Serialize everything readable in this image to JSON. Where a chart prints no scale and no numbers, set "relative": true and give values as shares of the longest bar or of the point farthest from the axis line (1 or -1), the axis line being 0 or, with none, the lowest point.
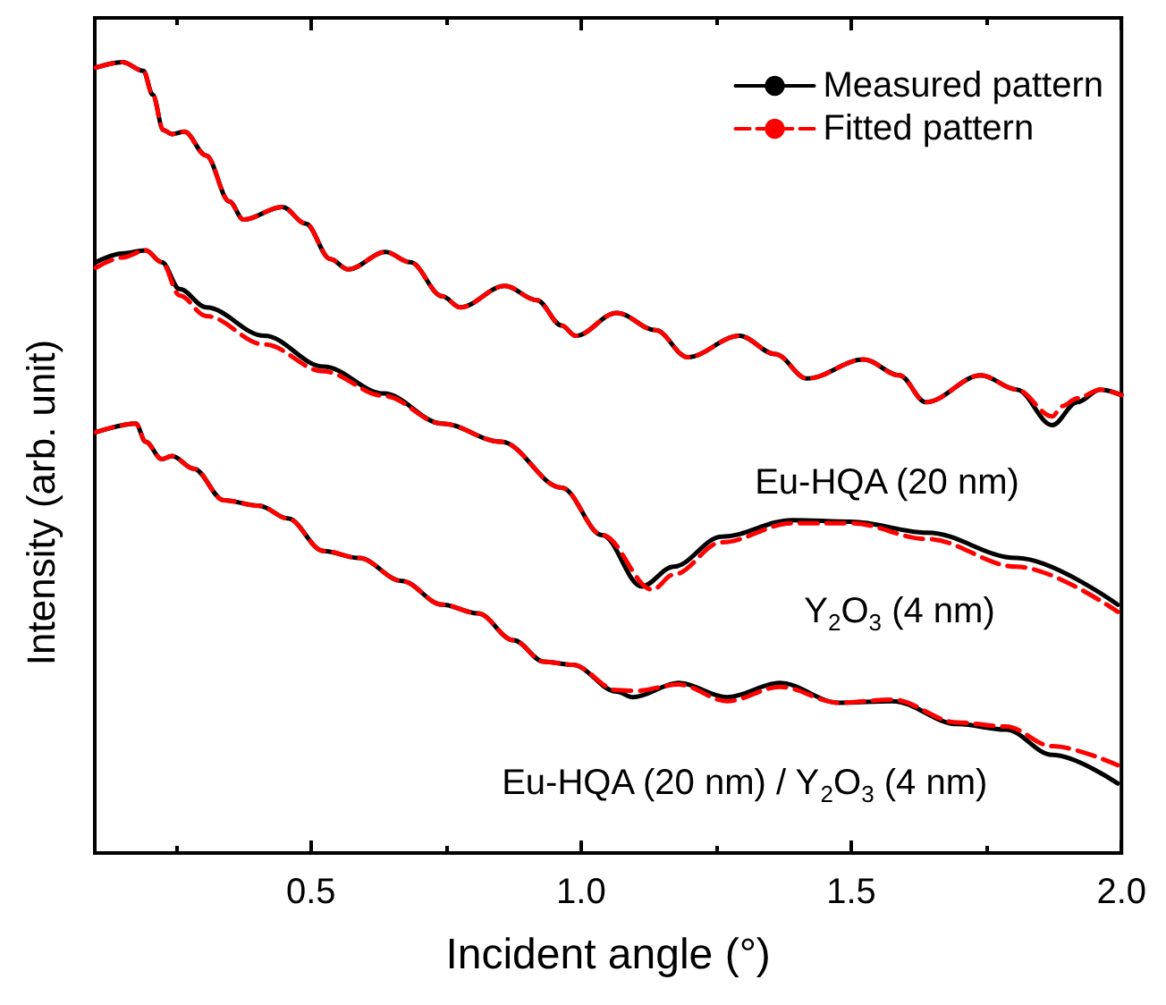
{
  "chart_data": {
    "type": "line",
    "relative": true,
    "xlabel": "Incident angle (°)",
    "ylabel": "Intensity (arb. unit)",
    "xlim": [
      0.1,
      2.0
    ],
    "xticks": [
      {
        "value": 0.25,
        "label": null
      },
      0.5,
      {
        "value": 0.75,
        "label": null
      },
      {
        "value": 1.0,
        "label": "1.0"
      },
      {
        "value": 1.25,
        "label": null
      },
      1.5,
      {
        "value": 1.75,
        "label": null
      },
      {
        "value": 2.0,
        "label": "2.0"
      }
    ],
    "legend": "top right",
    "marker": "none",
    "grid": false,
    "series": [
      {
        "name": "Measured pattern",
        "color": "#000000",
        "line_style": "solid",
        "x": [
          0.102,
          0.151,
          0.19,
          0.207,
          0.227,
          0.243,
          0.266,
          0.306,
          0.349,
          0.375,
          0.447,
          0.49,
          0.536,
          0.569,
          0.638,
          0.684,
          0.743,
          0.776,
          0.859,
          0.918,
          0.964,
          0.99,
          1.066,
          1.138,
          1.197,
          1.293,
          1.359,
          1.418,
          1.523,
          1.589,
          1.638,
          1.74,
          1.806,
          1.872,
          1.918,
          1.961,
          2.0
        ],
        "values": [
          0.993,
          1.0,
          0.989,
          0.959,
          0.914,
          0.909,
          0.912,
          0.882,
          0.824,
          0.801,
          0.817,
          0.796,
          0.751,
          0.738,
          0.76,
          0.747,
          0.704,
          0.69,
          0.717,
          0.699,
          0.667,
          0.654,
          0.683,
          0.661,
          0.627,
          0.654,
          0.631,
          0.6,
          0.624,
          0.604,
          0.57,
          0.604,
          0.586,
          0.541,
          0.57,
          0.586,
          0.579
        ]
      },
      {
        "name": "Fitted pattern",
        "color": "#ff0000",
        "line_style": "dashed",
        "x": [
          0.102,
          0.151,
          0.19,
          0.207,
          0.227,
          0.243,
          0.266,
          0.306,
          0.349,
          0.375,
          0.447,
          0.49,
          0.536,
          0.569,
          0.638,
          0.684,
          0.743,
          0.776,
          0.859,
          0.918,
          0.964,
          0.99,
          1.066,
          1.138,
          1.197,
          1.293,
          1.359,
          1.418,
          1.523,
          1.589,
          1.638,
          1.74,
          1.806,
          1.872,
          1.89,
          1.918,
          1.961,
          2.0
        ],
        "values": [
          0.993,
          1.0,
          0.989,
          0.959,
          0.914,
          0.909,
          0.912,
          0.882,
          0.824,
          0.801,
          0.817,
          0.796,
          0.751,
          0.738,
          0.76,
          0.747,
          0.704,
          0.69,
          0.717,
          0.699,
          0.667,
          0.654,
          0.683,
          0.661,
          0.627,
          0.654,
          0.631,
          0.6,
          0.624,
          0.604,
          0.57,
          0.604,
          0.586,
          0.552,
          0.565,
          0.575,
          0.586,
          0.579
        ]
      },
      {
        "color": "#000000",
        "line_style": "solid",
        "x": [
          0.102,
          0.151,
          0.194,
          0.224,
          0.257,
          0.306,
          0.414,
          0.523,
          0.635,
          0.743,
          0.852,
          0.964,
          1.039,
          1.112,
          1.171,
          1.26,
          1.391,
          1.5,
          1.641,
          1.806,
          1.993
        ],
        "values": [
          0.747,
          0.758,
          0.762,
          0.747,
          0.713,
          0.69,
          0.654,
          0.615,
          0.581,
          0.543,
          0.52,
          0.462,
          0.402,
          0.337,
          0.362,
          0.4,
          0.421,
          0.419,
          0.405,
          0.373,
          0.314
        ]
      },
      {
        "color": "#ff0000",
        "line_style": "dashed",
        "x": [
          0.102,
          0.151,
          0.194,
          0.224,
          0.257,
          0.306,
          0.414,
          0.523,
          0.635,
          0.743,
          0.852,
          0.964,
          1.039,
          1.132,
          1.171,
          1.26,
          1.391,
          1.5,
          1.641,
          1.806,
          1.993
        ],
        "values": [
          0.74,
          0.753,
          0.762,
          0.747,
          0.705,
          0.679,
          0.643,
          0.609,
          0.578,
          0.543,
          0.52,
          0.462,
          0.402,
          0.333,
          0.352,
          0.393,
          0.417,
          0.417,
          0.397,
          0.362,
          0.305
        ]
      },
      {
        "color": "#000000",
        "line_style": "solid",
        "x": [
          0.102,
          0.176,
          0.194,
          0.224,
          0.243,
          0.283,
          0.339,
          0.405,
          0.457,
          0.523,
          0.589,
          0.668,
          0.743,
          0.809,
          0.875,
          0.931,
          0.984,
          1.066,
          1.095,
          1.181,
          1.27,
          1.368,
          1.477,
          1.576,
          1.697,
          1.786,
          1.872,
          1.993
        ],
        "values": [
          0.532,
          0.543,
          0.52,
          0.498,
          0.502,
          0.486,
          0.446,
          0.439,
          0.423,
          0.382,
          0.373,
          0.344,
          0.314,
          0.303,
          0.269,
          0.242,
          0.238,
          0.204,
          0.197,
          0.215,
          0.197,
          0.215,
          0.19,
          0.192,
          0.163,
          0.156,
          0.124,
          0.088
        ]
      },
      {
        "color": "#ff0000",
        "line_style": "dashed",
        "x": [
          0.102,
          0.176,
          0.194,
          0.224,
          0.243,
          0.283,
          0.339,
          0.405,
          0.457,
          0.523,
          0.589,
          0.668,
          0.743,
          0.809,
          0.875,
          0.931,
          0.984,
          1.066,
          1.1,
          1.181,
          1.27,
          1.368,
          1.477,
          1.576,
          1.697,
          1.786,
          1.872,
          1.993
        ],
        "values": [
          0.532,
          0.543,
          0.52,
          0.498,
          0.502,
          0.486,
          0.446,
          0.439,
          0.423,
          0.382,
          0.373,
          0.344,
          0.314,
          0.303,
          0.269,
          0.242,
          0.238,
          0.206,
          0.205,
          0.213,
          0.192,
          0.21,
          0.19,
          0.194,
          0.165,
          0.16,
          0.135,
          0.111
        ]
      }
    ],
    "annotations": [
      "Eu-HQA (20 nm)",
      "Y$_{2}$O$_{3}$ (4 nm)",
      "Eu-HQA (20 nm) / Y$_{2}$O$_{3}$ (4 nm)"
    ]
  }
}
